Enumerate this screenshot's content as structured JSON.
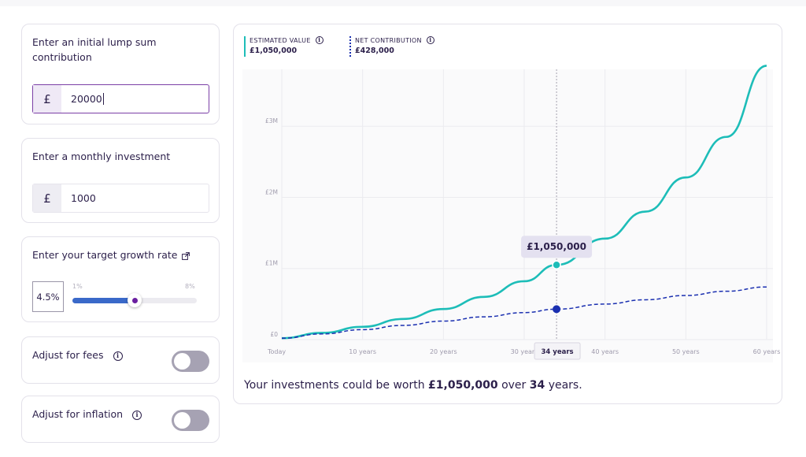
{
  "lump_sum": {
    "label_line1": "Enter an initial lump sum",
    "label_line2": "contribution",
    "currency": "£",
    "value": "20000"
  },
  "monthly": {
    "label": "Enter a monthly investment",
    "currency": "£",
    "value": "1000"
  },
  "growth": {
    "label": "Enter your target growth rate",
    "value": "4.5%",
    "min_label": "1%",
    "max_label": "8%",
    "min": 1,
    "max": 8,
    "current": 4.5
  },
  "fees": {
    "label": "Adjust for fees",
    "enabled": false
  },
  "inflation": {
    "label": "Adjust for inflation",
    "enabled": false
  },
  "legend": {
    "estimated": {
      "title": "ESTIMATED VALUE",
      "value": "£1,050,000",
      "color": "#1dbdb8"
    },
    "net": {
      "title": "NET CONTRIBUTION",
      "value": "£428,000",
      "color": "#1a2fb0"
    }
  },
  "tooltip": "£1,050,000",
  "highlight_label": "34 years",
  "summary": {
    "prefix": "Your investments could be worth",
    "amount": "£1,050,000",
    "middle": "over",
    "years": "34",
    "suffix": "years."
  },
  "chart_data": {
    "type": "line",
    "x_unit": "years",
    "x": [
      0,
      5,
      10,
      15,
      20,
      25,
      30,
      34,
      40,
      45,
      50,
      55,
      60
    ],
    "xlim": [
      0,
      60
    ],
    "ylim": [
      0,
      3800000
    ],
    "x_tick_values": [
      0,
      10,
      20,
      30,
      40,
      50,
      60
    ],
    "x_tick_labels": [
      "Today",
      "10 years",
      "20 years",
      "30 years",
      "40 years",
      "50 years",
      "60 years"
    ],
    "y_tick_values": [
      0,
      1000000,
      2000000,
      3000000
    ],
    "y_tick_labels": [
      "£0",
      "£1M",
      "£2M",
      "£3M"
    ],
    "highlight_x": 34,
    "grid": true,
    "series": [
      {
        "name": "ESTIMATED VALUE",
        "style": "solid",
        "color": "#1dbdb8",
        "values": [
          20000,
          95000,
          180000,
          290000,
          430000,
          600000,
          820000,
          1050000,
          1420000,
          1800000,
          2280000,
          2850000,
          3850000
        ]
      },
      {
        "name": "NET CONTRIBUTION",
        "style": "dashed",
        "color": "#1a2fb0",
        "values": [
          20000,
          80000,
          140000,
          200000,
          260000,
          320000,
          380000,
          428000,
          500000,
          560000,
          620000,
          680000,
          740000
        ]
      }
    ]
  }
}
